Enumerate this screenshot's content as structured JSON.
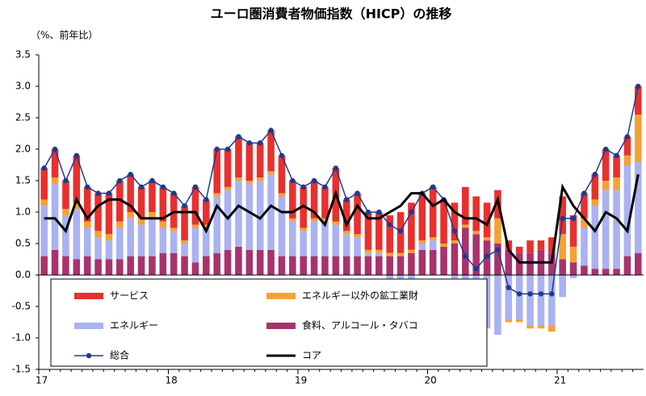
{
  "chart_data": {
    "type": "bar",
    "stacked": true,
    "title": "ユーロ圏消費者物価指数（HICP）の推移",
    "y_label": "（%、前年比）",
    "categories": [
      "17",
      null,
      null,
      null,
      null,
      null,
      null,
      null,
      null,
      null,
      null,
      null,
      "18",
      null,
      null,
      null,
      null,
      null,
      null,
      null,
      null,
      null,
      null,
      null,
      "19",
      null,
      null,
      null,
      null,
      null,
      null,
      null,
      null,
      null,
      null,
      null,
      "20",
      null,
      null,
      null,
      null,
      null,
      null,
      null,
      null,
      null,
      null,
      null,
      "21",
      null,
      null,
      null,
      null,
      null,
      null,
      null
    ],
    "ylim": [
      -1.5,
      3.5
    ],
    "yticks": [
      3.5,
      {
        "value": 3,
        "label": "3.0"
      },
      2.5,
      {
        "value": 2,
        "label": "2.0"
      },
      1.5,
      {
        "value": 1,
        "label": "1.0"
      },
      0.5,
      {
        "value": 0,
        "label": "0.0"
      },
      -0.5,
      {
        "value": -1,
        "label": "-1.0"
      },
      -1.5
    ],
    "series": [
      {
        "name": "サービス",
        "color": "#e8302e",
        "values": [
          0.5,
          0.45,
          0.45,
          0.75,
          0.55,
          0.6,
          0.65,
          0.65,
          0.6,
          0.5,
          0.5,
          0.55,
          0.55,
          0.55,
          0.6,
          0.4,
          0.7,
          0.6,
          0.65,
          0.6,
          0.55,
          0.65,
          0.6,
          0.6,
          0.65,
          0.6,
          0.5,
          0.85,
          0.5,
          0.65,
          0.6,
          0.6,
          0.6,
          0.65,
          0.75,
          0.75,
          0.8,
          0.7,
          0.6,
          0.6,
          0.55,
          0.55,
          0.45,
          0.15,
          0.1,
          0.2,
          0.15,
          0.25,
          0.6,
          0.5,
          0.4,
          0.4,
          0.5,
          0.35,
          0.3,
          0.45
        ]
      },
      {
        "name": "エネルギー以外の鉱工業財",
        "color": "#f5a233",
        "values": [
          0.1,
          0.1,
          0.1,
          0.1,
          0.1,
          0.1,
          0.1,
          0.1,
          0.1,
          0.1,
          0.1,
          0.1,
          0.05,
          0.05,
          0.05,
          0.05,
          0.05,
          0.05,
          0.05,
          0.05,
          0.05,
          0.05,
          0.05,
          0.05,
          0.05,
          0.05,
          0.05,
          0.05,
          0.05,
          0.05,
          0.05,
          0.05,
          0.05,
          0.05,
          0.05,
          0.05,
          0.05,
          0.05,
          0.05,
          0.05,
          0.05,
          0.05,
          0.4,
          -0.05,
          -0.05,
          -0.05,
          -0.05,
          -0.1,
          0.4,
          0.25,
          0.15,
          0.1,
          0.15,
          0.2,
          0.15,
          0.75
        ]
      },
      {
        "name": "エネルギー",
        "color": "#aab2f2",
        "values": [
          0.8,
          1.05,
          0.65,
          0.8,
          0.45,
          0.35,
          0.3,
          0.5,
          0.6,
          0.5,
          0.6,
          0.4,
          0.35,
          0.2,
          0.55,
          0.45,
          0.9,
          0.95,
          1.05,
          1.05,
          1.1,
          1.2,
          0.95,
          0.55,
          0.4,
          0.55,
          0.55,
          0.5,
          0.35,
          0.3,
          0.05,
          0.05,
          -0.15,
          -0.3,
          -0.15,
          0.1,
          0.15,
          0,
          -0.45,
          -1.1,
          -1.15,
          -0.85,
          -0.95,
          -0.7,
          -0.7,
          -0.8,
          -0.8,
          -0.8,
          -0.35,
          -0.05,
          0.6,
          1.0,
          1.25,
          1.25,
          1.45,
          1.45
        ]
      },
      {
        "name": "食料、アルコール・タバコ",
        "color": "#a8336c",
        "values": [
          0.3,
          0.4,
          0.3,
          0.25,
          0.3,
          0.25,
          0.25,
          0.25,
          0.3,
          0.3,
          0.3,
          0.35,
          0.35,
          0.3,
          0.2,
          0.3,
          0.35,
          0.4,
          0.45,
          0.4,
          0.4,
          0.4,
          0.3,
          0.3,
          0.3,
          0.3,
          0.3,
          0.3,
          0.3,
          0.3,
          0.3,
          0.3,
          0.3,
          0.3,
          0.35,
          0.4,
          0.4,
          0.45,
          0.5,
          0.75,
          0.65,
          0.55,
          0.5,
          0.4,
          0.35,
          0.35,
          0.4,
          0.35,
          0.25,
          0.2,
          0.15,
          0.1,
          0.1,
          0.1,
          0.3,
          0.35
        ]
      },
      {
        "name": "総合",
        "type": "line",
        "marker": true,
        "color": "#1c3a8f",
        "values": [
          1.7,
          2.0,
          1.5,
          1.9,
          1.4,
          1.3,
          1.3,
          1.5,
          1.6,
          1.4,
          1.5,
          1.4,
          1.3,
          1.1,
          1.4,
          1.2,
          2.0,
          2.0,
          2.2,
          2.1,
          2.1,
          2.3,
          1.9,
          1.5,
          1.4,
          1.5,
          1.4,
          1.7,
          1.2,
          1.3,
          1.0,
          1.0,
          0.8,
          0.7,
          1.0,
          1.3,
          1.4,
          1.2,
          0.7,
          0.3,
          0.1,
          0.3,
          0.4,
          -0.2,
          -0.3,
          -0.3,
          -0.3,
          -0.3,
          0.9,
          0.9,
          1.3,
          1.6,
          2.0,
          1.9,
          2.2,
          3.0
        ]
      },
      {
        "name": "コア",
        "type": "line",
        "marker": false,
        "color": "#000000",
        "values": [
          0.9,
          0.9,
          0.7,
          1.2,
          0.9,
          1.1,
          1.2,
          1.2,
          1.1,
          0.9,
          0.9,
          0.9,
          1.0,
          1.0,
          1.0,
          0.7,
          1.1,
          0.9,
          1.1,
          1.0,
          0.9,
          1.1,
          1.0,
          1.0,
          1.1,
          1.0,
          0.8,
          1.3,
          0.8,
          1.1,
          0.9,
          0.9,
          1.0,
          1.1,
          1.3,
          1.3,
          1.1,
          1.2,
          1.0,
          0.9,
          0.9,
          0.8,
          1.2,
          0.4,
          0.2,
          0.2,
          0.2,
          0.2,
          1.4,
          1.1,
          0.9,
          0.7,
          1.0,
          0.9,
          0.7,
          1.6
        ]
      }
    ]
  }
}
